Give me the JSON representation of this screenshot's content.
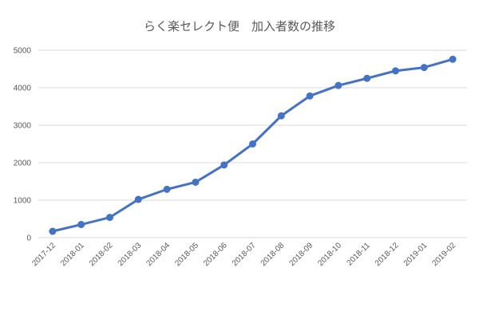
{
  "chart_data": {
    "type": "line",
    "title": "らく楽セレクト便　加入者数の推移",
    "xlabel": "",
    "ylabel": "",
    "categories": [
      "2017-12",
      "2018-01",
      "2018-02",
      "2018-03",
      "2018-04",
      "2018-05",
      "2018-06",
      "2018-07",
      "2018-08",
      "2018-09",
      "2018-10",
      "2018-11",
      "2018-12",
      "2019-01",
      "2019-02"
    ],
    "series": [
      {
        "values": [
          170,
          350,
          540,
          1020,
          1290,
          1480,
          1940,
          2500,
          3250,
          3780,
          4060,
          4250,
          4450,
          4540,
          4760
        ],
        "color": "#4472c4"
      }
    ],
    "ylim": [
      0,
      5000
    ],
    "yticks": [
      "0",
      "1000",
      "2000",
      "3000",
      "4000",
      "5000"
    ],
    "grid": true,
    "legend": "none"
  }
}
